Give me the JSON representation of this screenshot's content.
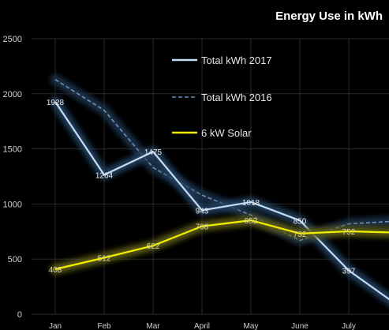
{
  "chart_data": {
    "type": "line",
    "title": "Energy Use in kWh",
    "xlabel": "",
    "ylabel": "",
    "categories": [
      "Jan",
      "Feb",
      "Mar",
      "April",
      "May",
      "June",
      "July"
    ],
    "ylim": [
      0,
      2500
    ],
    "yticks": [
      0,
      500,
      1000,
      1500,
      2000,
      2500
    ],
    "grid": true,
    "legend_position": "top-center",
    "series": [
      {
        "name": "Total kWh 2017",
        "values": [
          1928,
          1264,
          1475,
          943,
          1018,
          850,
          397
        ],
        "labels": [
          "1928",
          "1264",
          "1475",
          "943",
          "1018",
          "850",
          "397"
        ],
        "trailing_value": 80,
        "color": "#c6dcf2",
        "glow": "#24405e",
        "style": "solid",
        "label_color": "#e8e8e8"
      },
      {
        "name": "Total kWh 2016",
        "values": [
          2130,
          1850,
          1330,
          1080,
          900,
          670,
          820
        ],
        "labels": [],
        "trailing_value": 845,
        "color": "#6e90b8",
        "glow": "#1c3049",
        "style": "dashed",
        "label_color": "#e8e8e8"
      },
      {
        "name": "6 kW Solar",
        "values": [
          408,
          512,
          622,
          798,
          852,
          732,
          752
        ],
        "labels": [
          "408",
          "512",
          "622",
          "798",
          "852",
          "732",
          "752"
        ],
        "trailing_value": 740,
        "color": "#f2ee00",
        "glow": "#5c5a12",
        "style": "solid",
        "label_color": "#d8d4a8"
      }
    ]
  }
}
